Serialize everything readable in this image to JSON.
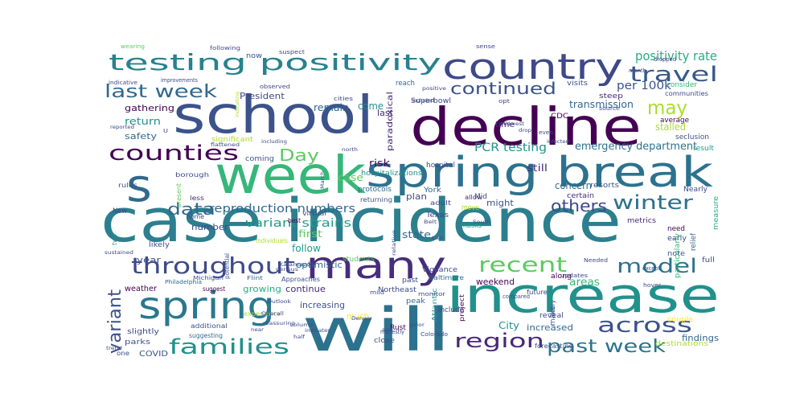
{
  "palette": [
    "#440154",
    "#472d7b",
    "#3b528b",
    "#2c728e",
    "#21918c",
    "#28ae80",
    "#5ec962",
    "#addc30",
    "#fde725"
  ],
  "words": [
    {
      "text": "case incidence",
      "color": "#2c7f8e"
    },
    {
      "text": "will",
      "color": "#2c728e"
    },
    {
      "text": "week",
      "color": "#35b779"
    },
    {
      "text": "school",
      "color": "#3b528b"
    },
    {
      "text": "decline",
      "color": "#440154"
    },
    {
      "text": "spring break",
      "color": "#2c728e"
    },
    {
      "text": "increase",
      "color": "#21918c"
    },
    {
      "text": "country",
      "color": "#3e4989"
    },
    {
      "text": "s",
      "color": "#31688e"
    },
    {
      "text": "testing positivity",
      "color": "#26828e"
    },
    {
      "text": "many",
      "color": "#472d7b"
    },
    {
      "text": "spring",
      "color": "#2a788e"
    },
    {
      "text": "throughout",
      "color": "#3e4a89"
    },
    {
      "text": "travel",
      "color": "#38598c"
    },
    {
      "text": "counties",
      "color": "#440154"
    },
    {
      "text": "last week",
      "color": "#31688e"
    },
    {
      "text": "winter",
      "color": "#2c728e"
    },
    {
      "text": "families",
      "color": "#21918c"
    },
    {
      "text": "model",
      "color": "#2c728e"
    },
    {
      "text": "across",
      "color": "#3b528b"
    },
    {
      "text": "region",
      "color": "#482878"
    },
    {
      "text": "past week",
      "color": "#2c728e"
    },
    {
      "text": "recent",
      "color": "#5ec962"
    },
    {
      "text": "continued",
      "color": "#3b528b"
    },
    {
      "text": "may",
      "color": "#addc30"
    },
    {
      "text": "variant",
      "color": "#3b528b"
    },
    {
      "text": "others",
      "color": "#3e4989"
    },
    {
      "text": "data",
      "color": "#31688e"
    },
    {
      "text": "Day",
      "color": "#5ec962"
    },
    {
      "text": "positivity rate",
      "color": "#28ae80"
    },
    {
      "text": "per 100k",
      "color": "#3b528b"
    },
    {
      "text": "reproduction numbers",
      "color": "#31688e"
    },
    {
      "text": "variant strains",
      "color": "#1f9e89"
    },
    {
      "text": "emergency department",
      "color": "#2c728e"
    },
    {
      "text": "PCR testing",
      "color": "#21918c"
    },
    {
      "text": "transmission",
      "color": "#31688e"
    },
    {
      "text": "stalled",
      "color": "#addc30"
    },
    {
      "text": "gathering",
      "color": "#440154"
    },
    {
      "text": "return",
      "color": "#21918c"
    },
    {
      "text": "safety",
      "color": "#31688e"
    },
    {
      "text": "President",
      "color": "#3e4989"
    },
    {
      "text": "remain",
      "color": "#31688e"
    },
    {
      "text": "come",
      "color": "#21918c"
    },
    {
      "text": "risk",
      "color": "#440154"
    },
    {
      "text": "case",
      "color": "#5ec962"
    },
    {
      "text": "still",
      "color": "#472d7b"
    },
    {
      "text": "concern",
      "color": "#31688e"
    },
    {
      "text": "might",
      "color": "#3b528b"
    },
    {
      "text": "plan",
      "color": "#3e4989"
    },
    {
      "text": "state",
      "color": "#31688e"
    },
    {
      "text": "first",
      "color": "#5ec962"
    },
    {
      "text": "follow",
      "color": "#1f9e89"
    },
    {
      "text": "optimistic",
      "color": "#31688e"
    },
    {
      "text": "continue",
      "color": "#482878"
    },
    {
      "text": "increasing",
      "color": "#3b528b"
    },
    {
      "text": "growing",
      "color": "#28ae80"
    },
    {
      "text": "weekend",
      "color": "#440154"
    },
    {
      "text": "areas",
      "color": "#35b779"
    },
    {
      "text": "number",
      "color": "#3e4989"
    },
    {
      "text": "year",
      "color": "#3b528b"
    },
    {
      "text": "much",
      "color": "#fde725"
    },
    {
      "text": "City",
      "color": "#21918c"
    },
    {
      "text": "increased",
      "color": "#31688e"
    },
    {
      "text": "findings",
      "color": "#31688e"
    },
    {
      "text": "COVID",
      "color": "#3b528b"
    },
    {
      "text": "weather",
      "color": "#440154"
    },
    {
      "text": "last",
      "color": "#472d7b"
    },
    {
      "text": "paradoxical",
      "color": "#482878"
    },
    {
      "text": "hospital",
      "color": "#3e4989"
    },
    {
      "text": "time",
      "color": "#472d7b"
    },
    {
      "text": "masks",
      "color": "#1f9e89"
    },
    {
      "text": "now",
      "color": "#3b528b"
    },
    {
      "text": "reach",
      "color": "#31688e"
    },
    {
      "text": "Superbowl",
      "color": "#3e4989"
    },
    {
      "text": "visits",
      "color": "#3b528b"
    },
    {
      "text": "CDC",
      "color": "#440154"
    },
    {
      "text": "steep",
      "color": "#482878"
    },
    {
      "text": "consider",
      "color": "#35b779"
    },
    {
      "text": "communities",
      "color": "#3e4989"
    },
    {
      "text": "average",
      "color": "#440154"
    },
    {
      "text": "seclusion",
      "color": "#3b528b"
    },
    {
      "text": "result",
      "color": "#1f9e89"
    },
    {
      "text": "significant",
      "color": "#addc30"
    },
    {
      "text": "coming",
      "color": "#3b528b"
    },
    {
      "text": "hospitalizations",
      "color": "#21918c"
    },
    {
      "text": "protocols",
      "color": "#31688e"
    },
    {
      "text": "resorts",
      "color": "#3b528b"
    },
    {
      "text": "certain",
      "color": "#472d7b"
    },
    {
      "text": "Nearly",
      "color": "#3e4989"
    },
    {
      "text": "metrics",
      "color": "#482878"
    },
    {
      "text": "need",
      "color": "#440154"
    },
    {
      "text": "early",
      "color": "#3e4989"
    },
    {
      "text": "note",
      "color": "#3b528b"
    },
    {
      "text": "full",
      "color": "#3b528b"
    },
    {
      "text": "relief",
      "color": "#31688e"
    },
    {
      "text": "particularly",
      "color": "#35b779"
    },
    {
      "text": "measure",
      "color": "#28ae80"
    },
    {
      "text": "Texas",
      "color": "#3e4989"
    },
    {
      "text": "allow",
      "color": "#482878"
    },
    {
      "text": "York",
      "color": "#31688e"
    },
    {
      "text": "Mid",
      "color": "#3e4989"
    },
    {
      "text": "move",
      "color": "#addc30"
    },
    {
      "text": "adult",
      "color": "#3e4989"
    },
    {
      "text": "returning",
      "color": "#3b528b"
    },
    {
      "text": "borough",
      "color": "#3e4989"
    },
    {
      "text": "rules",
      "color": "#3b528b"
    },
    {
      "text": "less",
      "color": "#472d7b"
    },
    {
      "text": "present",
      "color": "#5ec962"
    },
    {
      "text": "home",
      "color": "#3e4989"
    },
    {
      "text": "New",
      "color": "#3e4989"
    },
    {
      "text": "likely",
      "color": "#3b528b"
    },
    {
      "text": "two",
      "color": "#21918c"
    },
    {
      "text": "virtual",
      "color": "#3e4989"
    },
    {
      "text": "best",
      "color": "#440154"
    },
    {
      "text": "individuals",
      "color": "#addc30"
    },
    {
      "text": "Approaches",
      "color": "#3b528b"
    },
    {
      "text": "students",
      "color": "#5ec962"
    },
    {
      "text": "Michigan",
      "color": "#3b528b"
    },
    {
      "text": "Flint",
      "color": "#31688e"
    },
    {
      "text": "Philadelphia",
      "color": "#31688e"
    },
    {
      "text": "suggest",
      "color": "#440154"
    },
    {
      "text": "potential",
      "color": "#3b528b"
    },
    {
      "text": "experience",
      "color": "#addc30"
    },
    {
      "text": "additional",
      "color": "#3b528b"
    },
    {
      "text": "suggesting",
      "color": "#31688e"
    },
    {
      "text": "slightly",
      "color": "#3e4989"
    },
    {
      "text": "parks",
      "color": "#3b528b"
    },
    {
      "text": "one",
      "color": "#3e4989"
    },
    {
      "text": "Northeast",
      "color": "#3e4989"
    },
    {
      "text": "peak",
      "color": "#31688e"
    },
    {
      "text": "mild",
      "color": "#3e4989"
    },
    {
      "text": "past",
      "color": "#3e4989"
    },
    {
      "text": "monitor",
      "color": "#3e4989"
    },
    {
      "text": "Atlantic",
      "color": "#21918c"
    },
    {
      "text": "Rust",
      "color": "#440154"
    },
    {
      "text": "include",
      "color": "#3e4989"
    },
    {
      "text": "Vigilance",
      "color": "#3e4989"
    },
    {
      "text": "project",
      "color": "#440154"
    },
    {
      "text": "Baltimore",
      "color": "#31688e"
    },
    {
      "text": "reveal",
      "color": "#3e4989"
    },
    {
      "text": "make",
      "color": "#3b528b"
    },
    {
      "text": "along",
      "color": "#440154"
    },
    {
      "text": "future",
      "color": "#3e4989"
    },
    {
      "text": "compared",
      "color": "#3e4989"
    },
    {
      "text": "forecasting",
      "color": "#3b528b"
    },
    {
      "text": "couple",
      "color": "#fde725"
    },
    {
      "text": "destinations",
      "color": "#addc30"
    },
    {
      "text": "close",
      "color": "#3b528b"
    },
    {
      "text": "modestly",
      "color": "#3e4989"
    },
    {
      "text": "Colorado",
      "color": "#3e4989"
    },
    {
      "text": "updates",
      "color": "#3e4989"
    },
    {
      "text": "Needed",
      "color": "#3e4989"
    },
    {
      "text": "except",
      "color": "#3e4989"
    },
    {
      "text": "hover",
      "color": "#3e4989"
    },
    {
      "text": "wearing",
      "color": "#5ec962"
    },
    {
      "text": "following",
      "color": "#3e4989"
    },
    {
      "text": "suspect",
      "color": "#3e4989"
    },
    {
      "text": "sense",
      "color": "#3e4989"
    },
    {
      "text": "indicative",
      "color": "#3e4989"
    },
    {
      "text": "improvements",
      "color": "#3e4989"
    },
    {
      "text": "month",
      "color": "#3e4989"
    },
    {
      "text": "dropped",
      "color": "#3e4989"
    },
    {
      "text": "observed",
      "color": "#3e4989"
    },
    {
      "text": "cities",
      "color": "#3e4989"
    },
    {
      "text": "positive",
      "color": "#3e4989"
    },
    {
      "text": "included",
      "color": "#3e4989"
    },
    {
      "text": "opt",
      "color": "#3e4989"
    },
    {
      "text": "source",
      "color": "#3e4989"
    },
    {
      "text": "indicating",
      "color": "#addc30"
    },
    {
      "text": "Midwest",
      "color": "#3e4989"
    },
    {
      "text": "drop",
      "color": "#3e4989"
    },
    {
      "text": "even",
      "color": "#3e4989"
    },
    {
      "text": "infected",
      "color": "#3e4989"
    },
    {
      "text": "including",
      "color": "#3e4989"
    },
    {
      "text": "flattened",
      "color": "#3e4989"
    },
    {
      "text": "reported",
      "color": "#3e4989"
    },
    {
      "text": "U",
      "color": "#3e4989"
    },
    {
      "text": "March",
      "color": "#3e4989"
    },
    {
      "text": "north",
      "color": "#3e4989"
    },
    {
      "text": "sustained",
      "color": "#3e4989"
    },
    {
      "text": "Belt",
      "color": "#3e4989"
    },
    {
      "text": "Denver",
      "color": "#3e4989"
    },
    {
      "text": "South",
      "color": "#3e4989"
    },
    {
      "text": "Lab",
      "color": "#3e4989"
    },
    {
      "text": "relative",
      "color": "#3e4989"
    },
    {
      "text": "Kalamazoo",
      "color": "#3e4989"
    },
    {
      "text": "census",
      "color": "#3e4989"
    },
    {
      "text": "Outlook",
      "color": "#3e4989"
    },
    {
      "text": "Overall",
      "color": "#3e4989"
    },
    {
      "text": "volume",
      "color": "#3e4989"
    },
    {
      "text": "reassuring",
      "color": "#3e4989"
    },
    {
      "text": "indicates",
      "color": "#3e4989"
    },
    {
      "text": "half",
      "color": "#3e4989"
    },
    {
      "text": "near",
      "color": "#3e4989"
    },
    {
      "text": "trend",
      "color": "#3e4989"
    },
    {
      "text": "prior",
      "color": "#3e4989"
    },
    {
      "text": "saw",
      "color": "#3e4989"
    },
    {
      "text": "every",
      "color": "#3e4989"
    }
  ]
}
